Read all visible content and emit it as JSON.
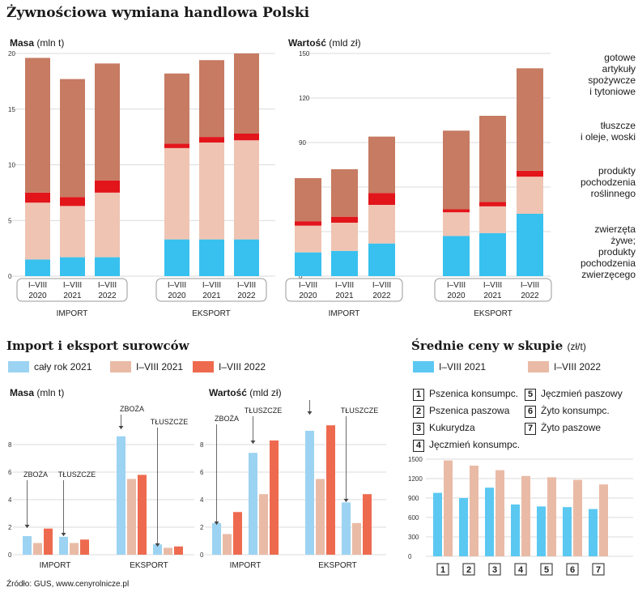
{
  "title": "Żywnościowa wymiana handlowa Polski",
  "source": "Źródło: GUS, www.cenyrolnicze.pl",
  "colors": {
    "gotowe": "#c67b62",
    "tluszcze": "#e2151b",
    "roslinne": "#efc4b3",
    "zwierzeta": "#38c1ef",
    "caly_rok_2021": "#9cd3f2",
    "viii_2021": "#e9bba6",
    "viii_2022": "#ee6a4f",
    "ceny_2021": "#5bc8f2",
    "ceny_2022": "#e9bba6"
  },
  "top": {
    "masa_label_bold": "Masa",
    "masa_label_unit": "(mln t)",
    "wartosc_label_bold": "Wartość",
    "wartosc_label_unit": "(mld zł)",
    "side_labels": {
      "gotowe": [
        "gotowe",
        "artykuły",
        "spożywcze",
        "i tytoniowe"
      ],
      "tluszcze": [
        "tłuszcze",
        "i oleje, woski"
      ],
      "roslinne": [
        "produkty",
        "pochodzenia",
        "roślinnego"
      ],
      "zwierzeta": [
        "zwierzęta",
        "żywe;",
        "produkty",
        "pochodzenia",
        "zwierzęcego"
      ]
    }
  },
  "surowce": {
    "title": "Import i eksport surowców",
    "legend": [
      "cały rok 2021",
      "I–VIII 2021",
      "I–VIII 2022"
    ],
    "masa_label_bold": "Masa",
    "masa_label_unit": "(mln t)",
    "wartosc_label_bold": "Wartość",
    "wartosc_label_unit": "(mld zł)"
  },
  "ceny": {
    "title": "Średnie ceny w skupie",
    "unit": "(zł/t)",
    "legend": [
      "I–VIII 2021",
      "I–VIII 2022"
    ],
    "products": [
      {
        "num": "1",
        "name": "Pszenica konsumpc."
      },
      {
        "num": "2",
        "name": "Pszenica paszowa"
      },
      {
        "num": "3",
        "name": "Kukurydza"
      },
      {
        "num": "4",
        "name": "Jęczmień konsumpc."
      },
      {
        "num": "5",
        "name": "Jęczmień paszowy"
      },
      {
        "num": "6",
        "name": "Żyto konsumpc."
      },
      {
        "num": "7",
        "name": "Żyto paszowe"
      }
    ]
  },
  "chart_data": [
    {
      "type": "bar",
      "stacked": true,
      "title": "Masa",
      "unit": "(mln t)",
      "groups": [
        "IMPORT",
        "EKSPORT"
      ],
      "categories": [
        "I–VIII 2020",
        "I–VIII 2021",
        "I–VIII 2022",
        "I–VIII 2020",
        "I–VIII 2021",
        "I–VIII 2022"
      ],
      "ylim": [
        0,
        20
      ],
      "yticks": [
        0,
        5,
        10,
        15,
        20
      ],
      "series": [
        {
          "name": "zwierzęta żywe; produkty pochodzenia zwierzęcego",
          "values": [
            1.5,
            1.7,
            1.7,
            3.3,
            3.3,
            3.3
          ]
        },
        {
          "name": "produkty pochodzenia roślinnego",
          "values": [
            5.1,
            4.6,
            5.8,
            8.2,
            8.7,
            8.9
          ]
        },
        {
          "name": "tłuszcze i oleje, woski",
          "values": [
            0.9,
            0.8,
            1.1,
            0.4,
            0.5,
            0.6
          ]
        },
        {
          "name": "gotowe artykuły spożywcze i tytoniowe",
          "values": [
            12.1,
            10.6,
            10.5,
            6.3,
            6.9,
            7.2
          ]
        }
      ]
    },
    {
      "type": "bar",
      "stacked": true,
      "title": "Wartość",
      "unit": "(mld zł)",
      "groups": [
        "IMPORT",
        "EKSPORT"
      ],
      "categories": [
        "I–VIII 2020",
        "I–VIII 2021",
        "I–VIII 2022",
        "I–VIII 2020",
        "I–VIII 2021",
        "I–VIII 2022"
      ],
      "ylim": [
        0,
        150
      ],
      "yticks": [
        0,
        30,
        60,
        90,
        120,
        150
      ],
      "series": [
        {
          "name": "zwierzęta żywe; produkty pochodzenia zwierzęcego",
          "values": [
            16,
            17,
            22,
            27,
            29,
            42
          ]
        },
        {
          "name": "produkty pochodzenia roślinnego",
          "values": [
            18,
            19,
            26,
            16,
            18,
            25
          ]
        },
        {
          "name": "tłuszcze i oleje, woski",
          "values": [
            3,
            4,
            8,
            2,
            3,
            4
          ]
        },
        {
          "name": "gotowe artykuły spożywcze i tytoniowe",
          "values": [
            29,
            32,
            38,
            53,
            58,
            69
          ]
        }
      ]
    },
    {
      "type": "bar",
      "title": "Masa",
      "unit": "(mln t)",
      "ylim": [
        0,
        10
      ],
      "yticks": [
        0,
        2,
        4,
        6,
        8
      ],
      "groups": [
        "IMPORT",
        "EKSPORT"
      ],
      "categories": [
        "ZBOŻA",
        "TŁUSZCZE",
        "ZBOŻA",
        "TŁUSZCZE"
      ],
      "series": [
        {
          "name": "cały rok 2021",
          "values": [
            1.35,
            1.3,
            8.6,
            0.75
          ]
        },
        {
          "name": "I–VIII 2021",
          "values": [
            0.85,
            0.85,
            5.5,
            0.5
          ]
        },
        {
          "name": "I–VIII 2022",
          "values": [
            1.9,
            1.1,
            5.8,
            0.6
          ]
        }
      ]
    },
    {
      "type": "bar",
      "title": "Wartość",
      "unit": "(mld zł)",
      "ylim": [
        0,
        10
      ],
      "yticks": [
        0,
        2,
        4,
        6,
        8
      ],
      "groups": [
        "IMPORT",
        "EKSPORT"
      ],
      "categories": [
        "ZBOŻA",
        "TŁUSZCZE",
        "ZBOŻA",
        "TŁUSZCZE"
      ],
      "series": [
        {
          "name": "cały rok 2021",
          "values": [
            2.3,
            7.4,
            9.0,
            3.8
          ]
        },
        {
          "name": "I–VIII 2021",
          "values": [
            1.5,
            4.4,
            5.5,
            2.3
          ]
        },
        {
          "name": "I–VIII 2022",
          "values": [
            3.1,
            8.3,
            9.4,
            4.4
          ]
        }
      ]
    },
    {
      "type": "bar",
      "title": "Średnie ceny w skupie",
      "unit": "(zł/t)",
      "ylim": [
        0,
        1500
      ],
      "yticks": [
        0,
        300,
        600,
        900,
        1200,
        1500
      ],
      "categories": [
        "1",
        "2",
        "3",
        "4",
        "5",
        "6",
        "7"
      ],
      "series": [
        {
          "name": "I–VIII 2021",
          "values": [
            980,
            900,
            1060,
            800,
            770,
            760,
            730
          ]
        },
        {
          "name": "I–VIII 2022",
          "values": [
            1480,
            1400,
            1330,
            1240,
            1220,
            1180,
            1110
          ]
        }
      ]
    }
  ]
}
